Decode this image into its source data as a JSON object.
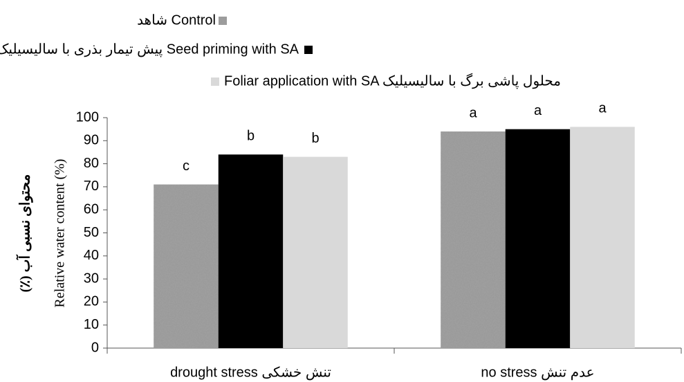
{
  "chart_data": {
    "type": "bar",
    "y_label": "Relative water content (%)",
    "y_label_fa": "محتوای نسبی آب (٪)",
    "categories": [
      "drought stress تنش خشکی",
      "no stress عدم تنش"
    ],
    "series": [
      {
        "name": "شاهد Control",
        "color": "#9a9a9a",
        "pattern": "noise",
        "values": [
          71,
          94
        ],
        "letters": [
          "c",
          "a"
        ]
      },
      {
        "name": "پیش تیمار بذری با سالیسیلیک Seed priming with SA",
        "color": "#000000",
        "values": [
          84,
          95
        ],
        "letters": [
          "b",
          "a"
        ]
      },
      {
        "name": "Foliar application with SA محلول پاشی برگ با سالیسیلیک",
        "color": "#d9d9d9",
        "values": [
          83,
          96
        ],
        "letters": [
          "b",
          "a"
        ]
      }
    ],
    "ylim": [
      0,
      100
    ],
    "yticks": [
      0,
      10,
      20,
      30,
      40,
      50,
      60,
      70,
      80,
      90,
      100
    ],
    "grid": false
  }
}
